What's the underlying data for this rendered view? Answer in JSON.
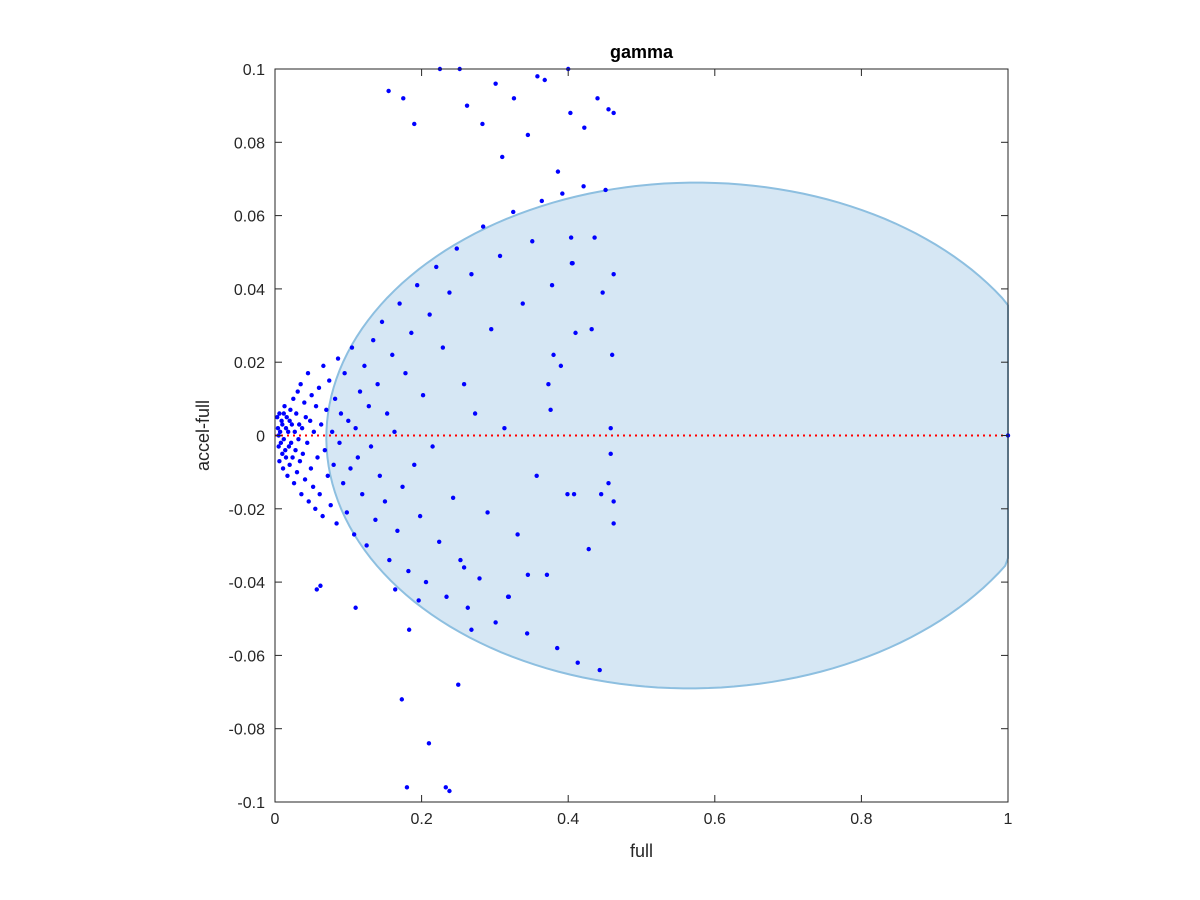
{
  "chart_data": {
    "type": "scatter",
    "title": "gamma",
    "xlabel": "full",
    "ylabel": "accel-full",
    "xlim": [
      0,
      1
    ],
    "ylim": [
      -0.1,
      0.1
    ],
    "x_ticks": [
      0,
      0.2,
      0.4,
      0.6,
      0.8,
      1
    ],
    "x_tick_labels": [
      "0",
      "0.2",
      "0.4",
      "0.6",
      "0.8",
      "1"
    ],
    "y_ticks": [
      -0.1,
      -0.08,
      -0.06,
      -0.04,
      -0.02,
      0,
      0.02,
      0.04,
      0.06,
      0.08,
      0.1
    ],
    "y_tick_labels": [
      "-0.1",
      "-0.08",
      "-0.06",
      "-0.04",
      "-0.02",
      "0",
      "0.02",
      "0.04",
      "0.06",
      "0.08",
      "0.1"
    ],
    "grid": false,
    "colors": {
      "points": "#0000ff",
      "ellipse_fill": "#d6e7f4",
      "ellipse_edge": "#8dbfe0",
      "reference_line": "#ff0000"
    },
    "reference_line": {
      "y": 0,
      "style": "dotted"
    },
    "ellipse": {
      "center": [
        0.57,
        0
      ],
      "semi_x": 0.5,
      "semi_y": 0.069,
      "tilt_to": [
        0.46,
        0.069
      ]
    },
    "points": [
      [
        0.003,
        0.005
      ],
      [
        0.004,
        0.002
      ],
      [
        0.005,
        -0.003
      ],
      [
        0.006,
        0.006
      ],
      [
        0.006,
        -0.007
      ],
      [
        0.007,
        0.001
      ],
      [
        0.008,
        -0.002
      ],
      [
        0.009,
        0.004
      ],
      [
        0.01,
        -0.005
      ],
      [
        0.01,
        0.003
      ],
      [
        0.011,
        -0.009
      ],
      [
        0.012,
        0.006
      ],
      [
        0.012,
        -0.001
      ],
      [
        0.013,
        0.008
      ],
      [
        0.014,
        -0.004
      ],
      [
        0.015,
        0.002
      ],
      [
        0.015,
        -0.006
      ],
      [
        0.016,
        0.005
      ],
      [
        0.017,
        -0.011
      ],
      [
        0.018,
        0.001
      ],
      [
        0.019,
        -0.003
      ],
      [
        0.02,
        0.004
      ],
      [
        0.02,
        -0.008
      ],
      [
        0.021,
        0.007
      ],
      [
        0.022,
        -0.002
      ],
      [
        0.023,
        0.003
      ],
      [
        0.024,
        -0.006
      ],
      [
        0.025,
        0.01
      ],
      [
        0.026,
        -0.013
      ],
      [
        0.027,
        0.001
      ],
      [
        0.028,
        -0.004
      ],
      [
        0.029,
        0.006
      ],
      [
        0.03,
        -0.01
      ],
      [
        0.031,
        0.012
      ],
      [
        0.032,
        -0.001
      ],
      [
        0.033,
        0.003
      ],
      [
        0.034,
        -0.007
      ],
      [
        0.035,
        0.014
      ],
      [
        0.036,
        -0.016
      ],
      [
        0.037,
        0.002
      ],
      [
        0.038,
        -0.005
      ],
      [
        0.04,
        0.009
      ],
      [
        0.041,
        -0.012
      ],
      [
        0.042,
        0.005
      ],
      [
        0.044,
        -0.002
      ],
      [
        0.045,
        0.017
      ],
      [
        0.046,
        -0.018
      ],
      [
        0.048,
        0.004
      ],
      [
        0.049,
        -0.009
      ],
      [
        0.05,
        0.011
      ],
      [
        0.052,
        -0.014
      ],
      [
        0.053,
        0.001
      ],
      [
        0.055,
        -0.02
      ],
      [
        0.056,
        0.008
      ],
      [
        0.058,
        -0.006
      ],
      [
        0.06,
        0.013
      ],
      [
        0.061,
        -0.016
      ],
      [
        0.063,
        0.003
      ],
      [
        0.065,
        -0.022
      ],
      [
        0.066,
        0.019
      ],
      [
        0.068,
        -0.004
      ],
      [
        0.07,
        0.007
      ],
      [
        0.072,
        -0.011
      ],
      [
        0.074,
        0.015
      ],
      [
        0.076,
        -0.019
      ],
      [
        0.078,
        0.001
      ],
      [
        0.08,
        -0.008
      ],
      [
        0.082,
        0.01
      ],
      [
        0.084,
        -0.024
      ],
      [
        0.086,
        0.021
      ],
      [
        0.088,
        -0.002
      ],
      [
        0.09,
        0.006
      ],
      [
        0.093,
        -0.013
      ],
      [
        0.095,
        0.017
      ],
      [
        0.098,
        -0.021
      ],
      [
        0.1,
        0.004
      ],
      [
        0.103,
        -0.009
      ],
      [
        0.105,
        0.024
      ],
      [
        0.108,
        -0.027
      ],
      [
        0.11,
        0.002
      ],
      [
        0.113,
        -0.006
      ],
      [
        0.116,
        0.012
      ],
      [
        0.119,
        -0.016
      ],
      [
        0.122,
        0.019
      ],
      [
        0.125,
        -0.03
      ],
      [
        0.128,
        0.008
      ],
      [
        0.131,
        -0.003
      ],
      [
        0.134,
        0.026
      ],
      [
        0.137,
        -0.023
      ],
      [
        0.14,
        0.014
      ],
      [
        0.143,
        -0.011
      ],
      [
        0.146,
        0.031
      ],
      [
        0.15,
        -0.018
      ],
      [
        0.153,
        0.006
      ],
      [
        0.156,
        -0.034
      ],
      [
        0.16,
        0.022
      ],
      [
        0.163,
        0.001
      ],
      [
        0.167,
        -0.026
      ],
      [
        0.17,
        0.036
      ],
      [
        0.174,
        -0.014
      ],
      [
        0.178,
        0.017
      ],
      [
        0.182,
        -0.037
      ],
      [
        0.186,
        0.028
      ],
      [
        0.19,
        -0.008
      ],
      [
        0.194,
        0.041
      ],
      [
        0.198,
        -0.022
      ],
      [
        0.202,
        0.011
      ],
      [
        0.206,
        -0.04
      ],
      [
        0.211,
        0.033
      ],
      [
        0.215,
        -0.003
      ],
      [
        0.22,
        0.046
      ],
      [
        0.224,
        -0.029
      ],
      [
        0.229,
        0.024
      ],
      [
        0.234,
        -0.044
      ],
      [
        0.238,
        0.039
      ],
      [
        0.243,
        -0.017
      ],
      [
        0.248,
        0.051
      ],
      [
        0.253,
        -0.034
      ],
      [
        0.258,
        0.014
      ],
      [
        0.263,
        -0.047
      ],
      [
        0.268,
        0.044
      ],
      [
        0.273,
        0.006
      ],
      [
        0.279,
        -0.039
      ],
      [
        0.284,
        0.057
      ],
      [
        0.29,
        -0.021
      ],
      [
        0.295,
        0.029
      ],
      [
        0.301,
        -0.051
      ],
      [
        0.307,
        0.049
      ],
      [
        0.313,
        0.002
      ],
      [
        0.319,
        -0.044
      ],
      [
        0.325,
        0.061
      ],
      [
        0.331,
        -0.027
      ],
      [
        0.338,
        0.036
      ],
      [
        0.344,
        -0.054
      ],
      [
        0.351,
        0.053
      ],
      [
        0.357,
        -0.011
      ],
      [
        0.364,
        0.064
      ],
      [
        0.371,
        -0.038
      ],
      [
        0.378,
        0.041
      ],
      [
        0.385,
        -0.058
      ],
      [
        0.392,
        0.066
      ],
      [
        0.399,
        -0.016
      ],
      [
        0.406,
        0.047
      ],
      [
        0.413,
        -0.062
      ],
      [
        0.421,
        0.068
      ],
      [
        0.428,
        -0.031
      ],
      [
        0.436,
        0.054
      ],
      [
        0.443,
        -0.064
      ],
      [
        0.451,
        0.067
      ],
      [
        0.458,
        -0.005
      ],
      [
        0.155,
        0.094
      ],
      [
        0.175,
        0.092
      ],
      [
        0.19,
        0.085
      ],
      [
        0.225,
        0.1
      ],
      [
        0.252,
        0.1
      ],
      [
        0.262,
        0.09
      ],
      [
        0.283,
        0.085
      ],
      [
        0.301,
        0.096
      ],
      [
        0.326,
        0.092
      ],
      [
        0.358,
        0.098
      ],
      [
        0.368,
        0.097
      ],
      [
        0.4,
        0.1
      ],
      [
        0.403,
        0.088
      ],
      [
        0.422,
        0.084
      ],
      [
        0.44,
        0.092
      ],
      [
        0.455,
        0.089
      ],
      [
        0.462,
        0.088
      ],
      [
        0.31,
        0.076
      ],
      [
        0.345,
        0.082
      ],
      [
        0.386,
        0.072
      ],
      [
        0.18,
        -0.096
      ],
      [
        0.21,
        -0.084
      ],
      [
        0.233,
        -0.096
      ],
      [
        0.238,
        -0.097
      ],
      [
        0.173,
        -0.072
      ],
      [
        0.25,
        -0.068
      ],
      [
        0.183,
        -0.053
      ],
      [
        0.268,
        -0.053
      ],
      [
        0.318,
        -0.044
      ],
      [
        0.345,
        -0.038
      ],
      [
        0.11,
        -0.047
      ],
      [
        0.057,
        -0.042
      ],
      [
        0.062,
        -0.041
      ],
      [
        0.164,
        -0.042
      ],
      [
        0.196,
        -0.045
      ],
      [
        0.258,
        -0.036
      ],
      [
        0.408,
        -0.016
      ],
      [
        0.445,
        -0.016
      ],
      [
        0.462,
        -0.018
      ],
      [
        0.462,
        -0.024
      ],
      [
        0.455,
        -0.013
      ],
      [
        0.46,
        0.022
      ],
      [
        0.458,
        0.002
      ],
      [
        0.462,
        0.044
      ],
      [
        0.447,
        0.039
      ],
      [
        0.432,
        0.029
      ],
      [
        0.405,
        0.047
      ],
      [
        0.404,
        0.054
      ],
      [
        0.41,
        0.028
      ],
      [
        0.373,
        0.014
      ],
      [
        0.376,
        0.007
      ],
      [
        0.38,
        0.022
      ],
      [
        0.39,
        0.019
      ],
      [
        0.005,
        0.0
      ],
      [
        1.0,
        0.0
      ]
    ]
  }
}
